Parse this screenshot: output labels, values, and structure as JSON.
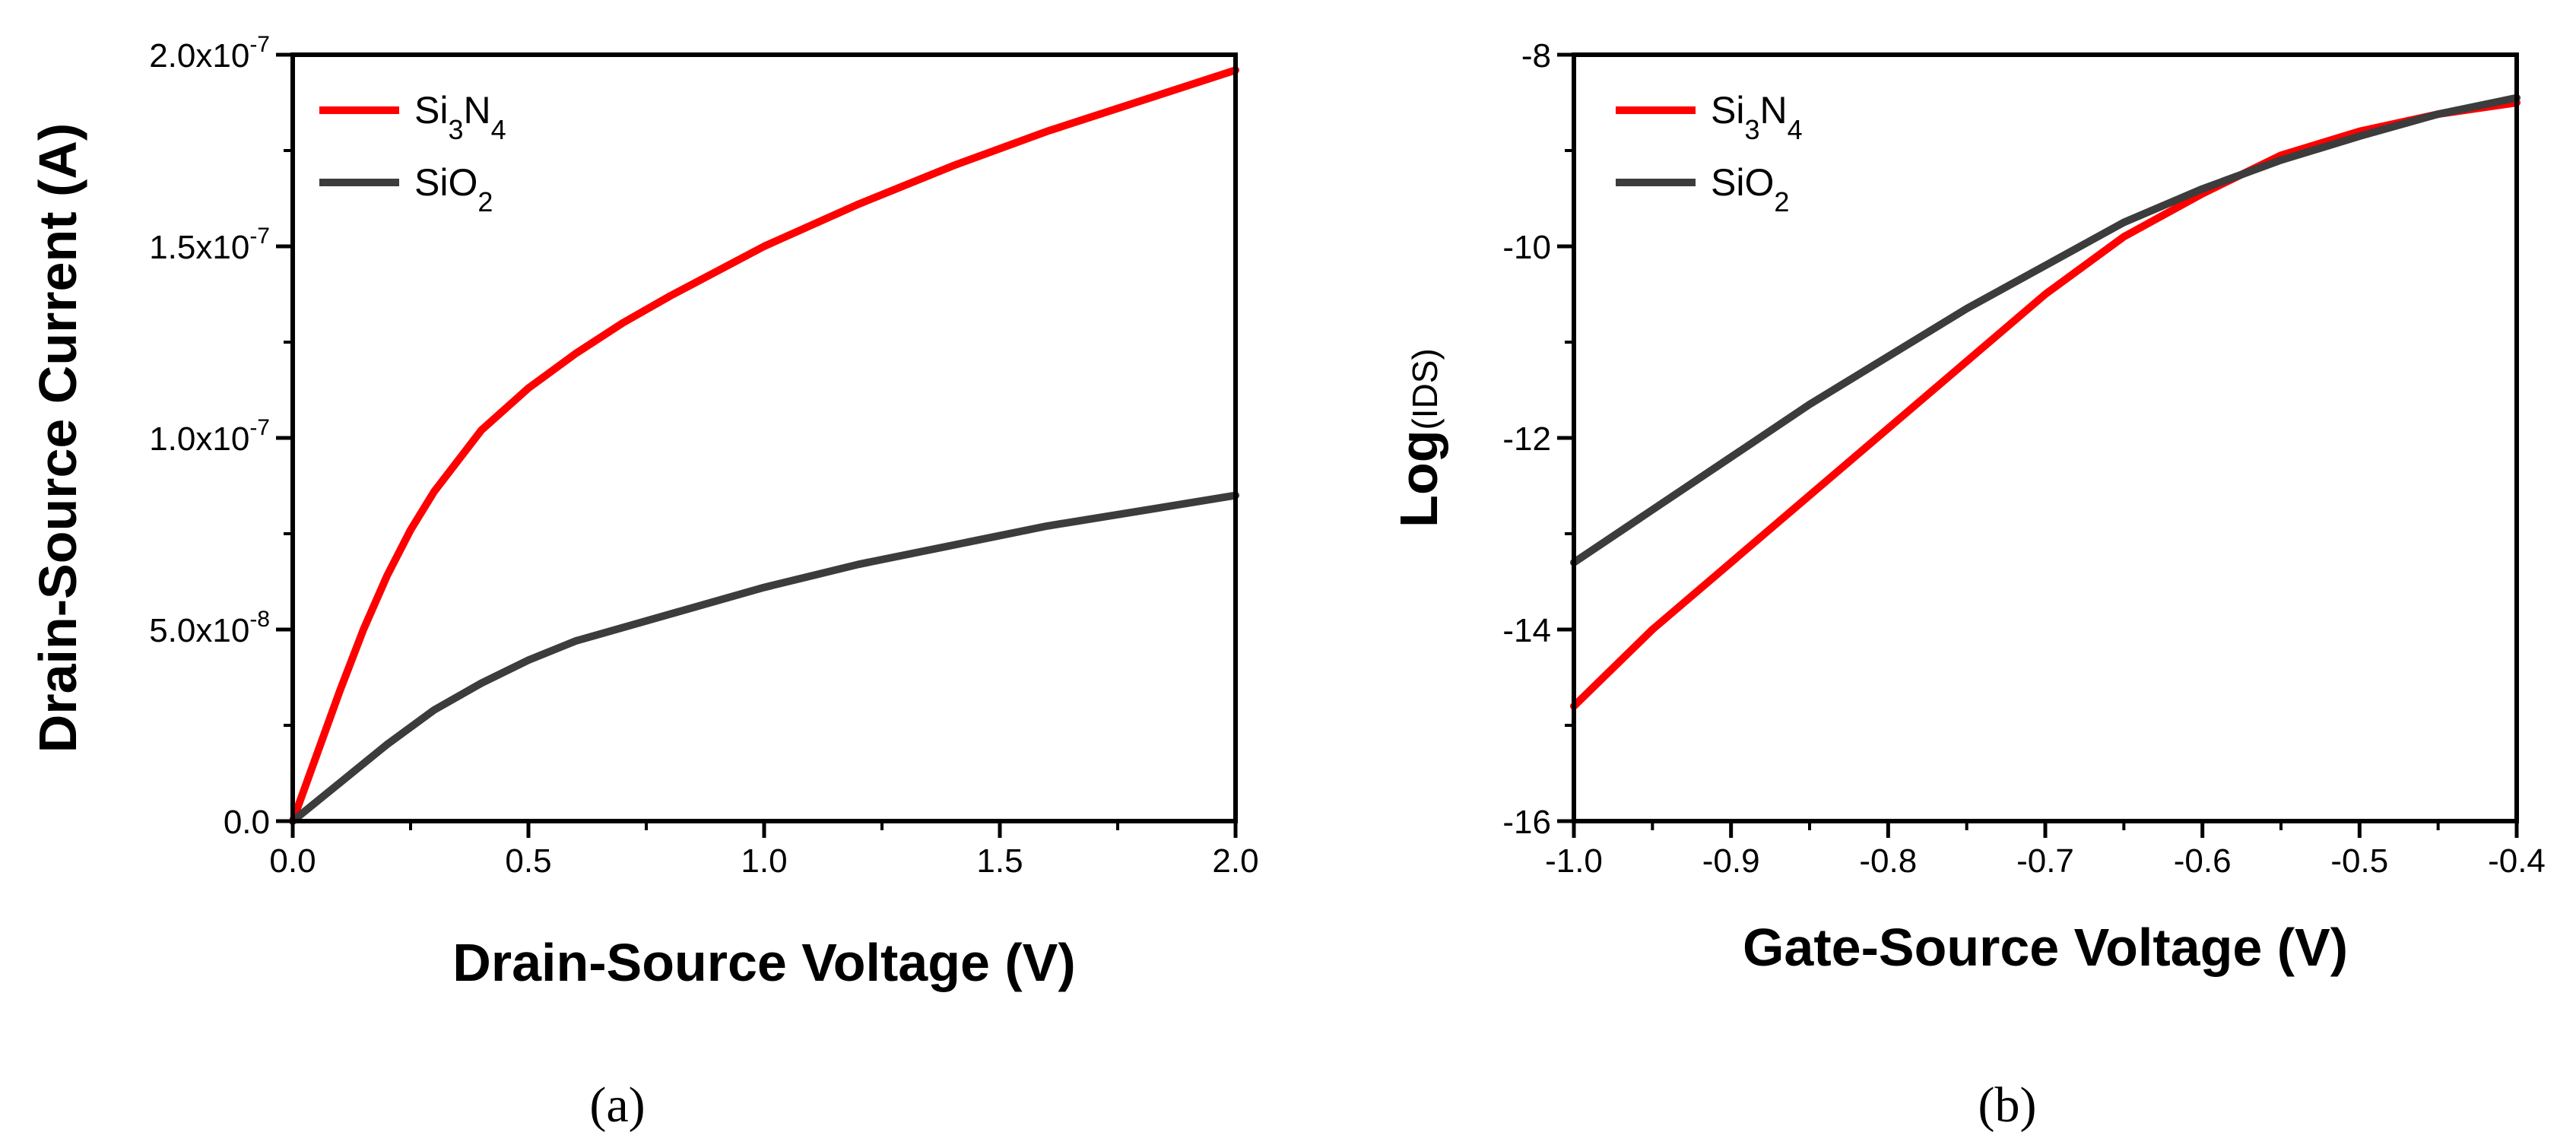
{
  "colors": {
    "si3n4": "#ff0000",
    "sio2": "#3c3c3c",
    "axis": "#000000"
  },
  "chart_data": [
    {
      "type": "line",
      "panel_label": "(a)",
      "xlabel": "Drain-Source Voltage (V)",
      "ylabel": "Drain-Source Current (A)",
      "xlim": [
        0,
        2.0
      ],
      "ylim": [
        0,
        2e-07
      ],
      "x_ticks": [
        0,
        0.5,
        1.0,
        1.5,
        2.0
      ],
      "x_tick_labels": [
        "0.0",
        "0.5",
        "1.0",
        "1.5",
        "2.0"
      ],
      "y_ticks": [
        0,
        5e-08,
        1e-07,
        1.5e-07,
        2e-07
      ],
      "y_tick_labels": [
        {
          "mant": "0.0",
          "exp": ""
        },
        {
          "mant": "5.0x10",
          "exp": "-8"
        },
        {
          "mant": "1.0x10",
          "exp": "-7"
        },
        {
          "mant": "1.5x10",
          "exp": "-7"
        },
        {
          "mant": "2.0x10",
          "exp": "-7"
        }
      ],
      "legend_position": "top-left",
      "series": [
        {
          "name": "Si3N4",
          "label_parts": {
            "base": "Si",
            "sub1": "3",
            "mid": "N",
            "sub2": "4"
          },
          "color_key": "si3n4",
          "x": [
            0,
            0.05,
            0.1,
            0.15,
            0.2,
            0.25,
            0.3,
            0.4,
            0.5,
            0.6,
            0.7,
            0.8,
            1.0,
            1.2,
            1.4,
            1.6,
            1.8,
            2.0
          ],
          "y": [
            0,
            1.7e-08,
            3.4e-08,
            5e-08,
            6.4e-08,
            7.6e-08,
            8.6e-08,
            1.02e-07,
            1.13e-07,
            1.22e-07,
            1.3e-07,
            1.37e-07,
            1.5e-07,
            1.61e-07,
            1.71e-07,
            1.8e-07,
            1.88e-07,
            1.96e-07
          ]
        },
        {
          "name": "SiO2",
          "label_parts": {
            "base": "SiO",
            "sub1": "2"
          },
          "color_key": "sio2",
          "x": [
            0,
            0.05,
            0.1,
            0.2,
            0.3,
            0.4,
            0.5,
            0.6,
            0.8,
            1.0,
            1.2,
            1.4,
            1.6,
            1.8,
            2.0
          ],
          "y": [
            0,
            5e-09,
            1e-08,
            2e-08,
            2.9e-08,
            3.6e-08,
            4.2e-08,
            4.7e-08,
            5.4e-08,
            6.1e-08,
            6.7e-08,
            7.2e-08,
            7.7e-08,
            8.1e-08,
            8.5e-08
          ]
        }
      ]
    },
    {
      "type": "line",
      "panel_label": "(b)",
      "xlabel": "Gate-Source Voltage (V)",
      "ylabel": "Log(IDS)",
      "ylabel_parts": {
        "pre": "Log",
        "paren_open": "(",
        "mid": "IDS",
        "paren_close": ")"
      },
      "xlim": [
        -1.0,
        -0.4
      ],
      "ylim": [
        -16,
        -8
      ],
      "x_ticks": [
        -1.0,
        -0.9,
        -0.8,
        -0.7,
        -0.6,
        -0.5,
        -0.4
      ],
      "x_tick_labels": [
        "-1.0",
        "-0.9",
        "-0.8",
        "-0.7",
        "-0.6",
        "-0.5",
        "-0.4"
      ],
      "y_ticks": [
        -16,
        -14,
        -12,
        -10,
        -8
      ],
      "y_tick_labels": [
        "-16",
        "-14",
        "-12",
        "-10",
        "-8"
      ],
      "legend_position": "top-left",
      "series": [
        {
          "name": "Si3N4",
          "label_parts": {
            "base": "Si",
            "sub1": "3",
            "mid": "N",
            "sub2": "4"
          },
          "color_key": "si3n4",
          "x": [
            -1.0,
            -0.95,
            -0.9,
            -0.85,
            -0.8,
            -0.75,
            -0.7,
            -0.65,
            -0.6,
            -0.55,
            -0.5,
            -0.45,
            -0.4
          ],
          "y": [
            -14.8,
            -14.0,
            -13.3,
            -12.6,
            -11.9,
            -11.2,
            -10.5,
            -9.9,
            -9.45,
            -9.05,
            -8.8,
            -8.62,
            -8.5
          ]
        },
        {
          "name": "SiO2",
          "label_parts": {
            "base": "SiO",
            "sub1": "2"
          },
          "color_key": "sio2",
          "x": [
            -1.0,
            -0.95,
            -0.9,
            -0.85,
            -0.8,
            -0.75,
            -0.7,
            -0.65,
            -0.6,
            -0.55,
            -0.5,
            -0.45,
            -0.4
          ],
          "y": [
            -13.3,
            -12.75,
            -12.2,
            -11.65,
            -11.15,
            -10.65,
            -10.2,
            -9.75,
            -9.4,
            -9.1,
            -8.85,
            -8.62,
            -8.45
          ]
        }
      ]
    }
  ]
}
